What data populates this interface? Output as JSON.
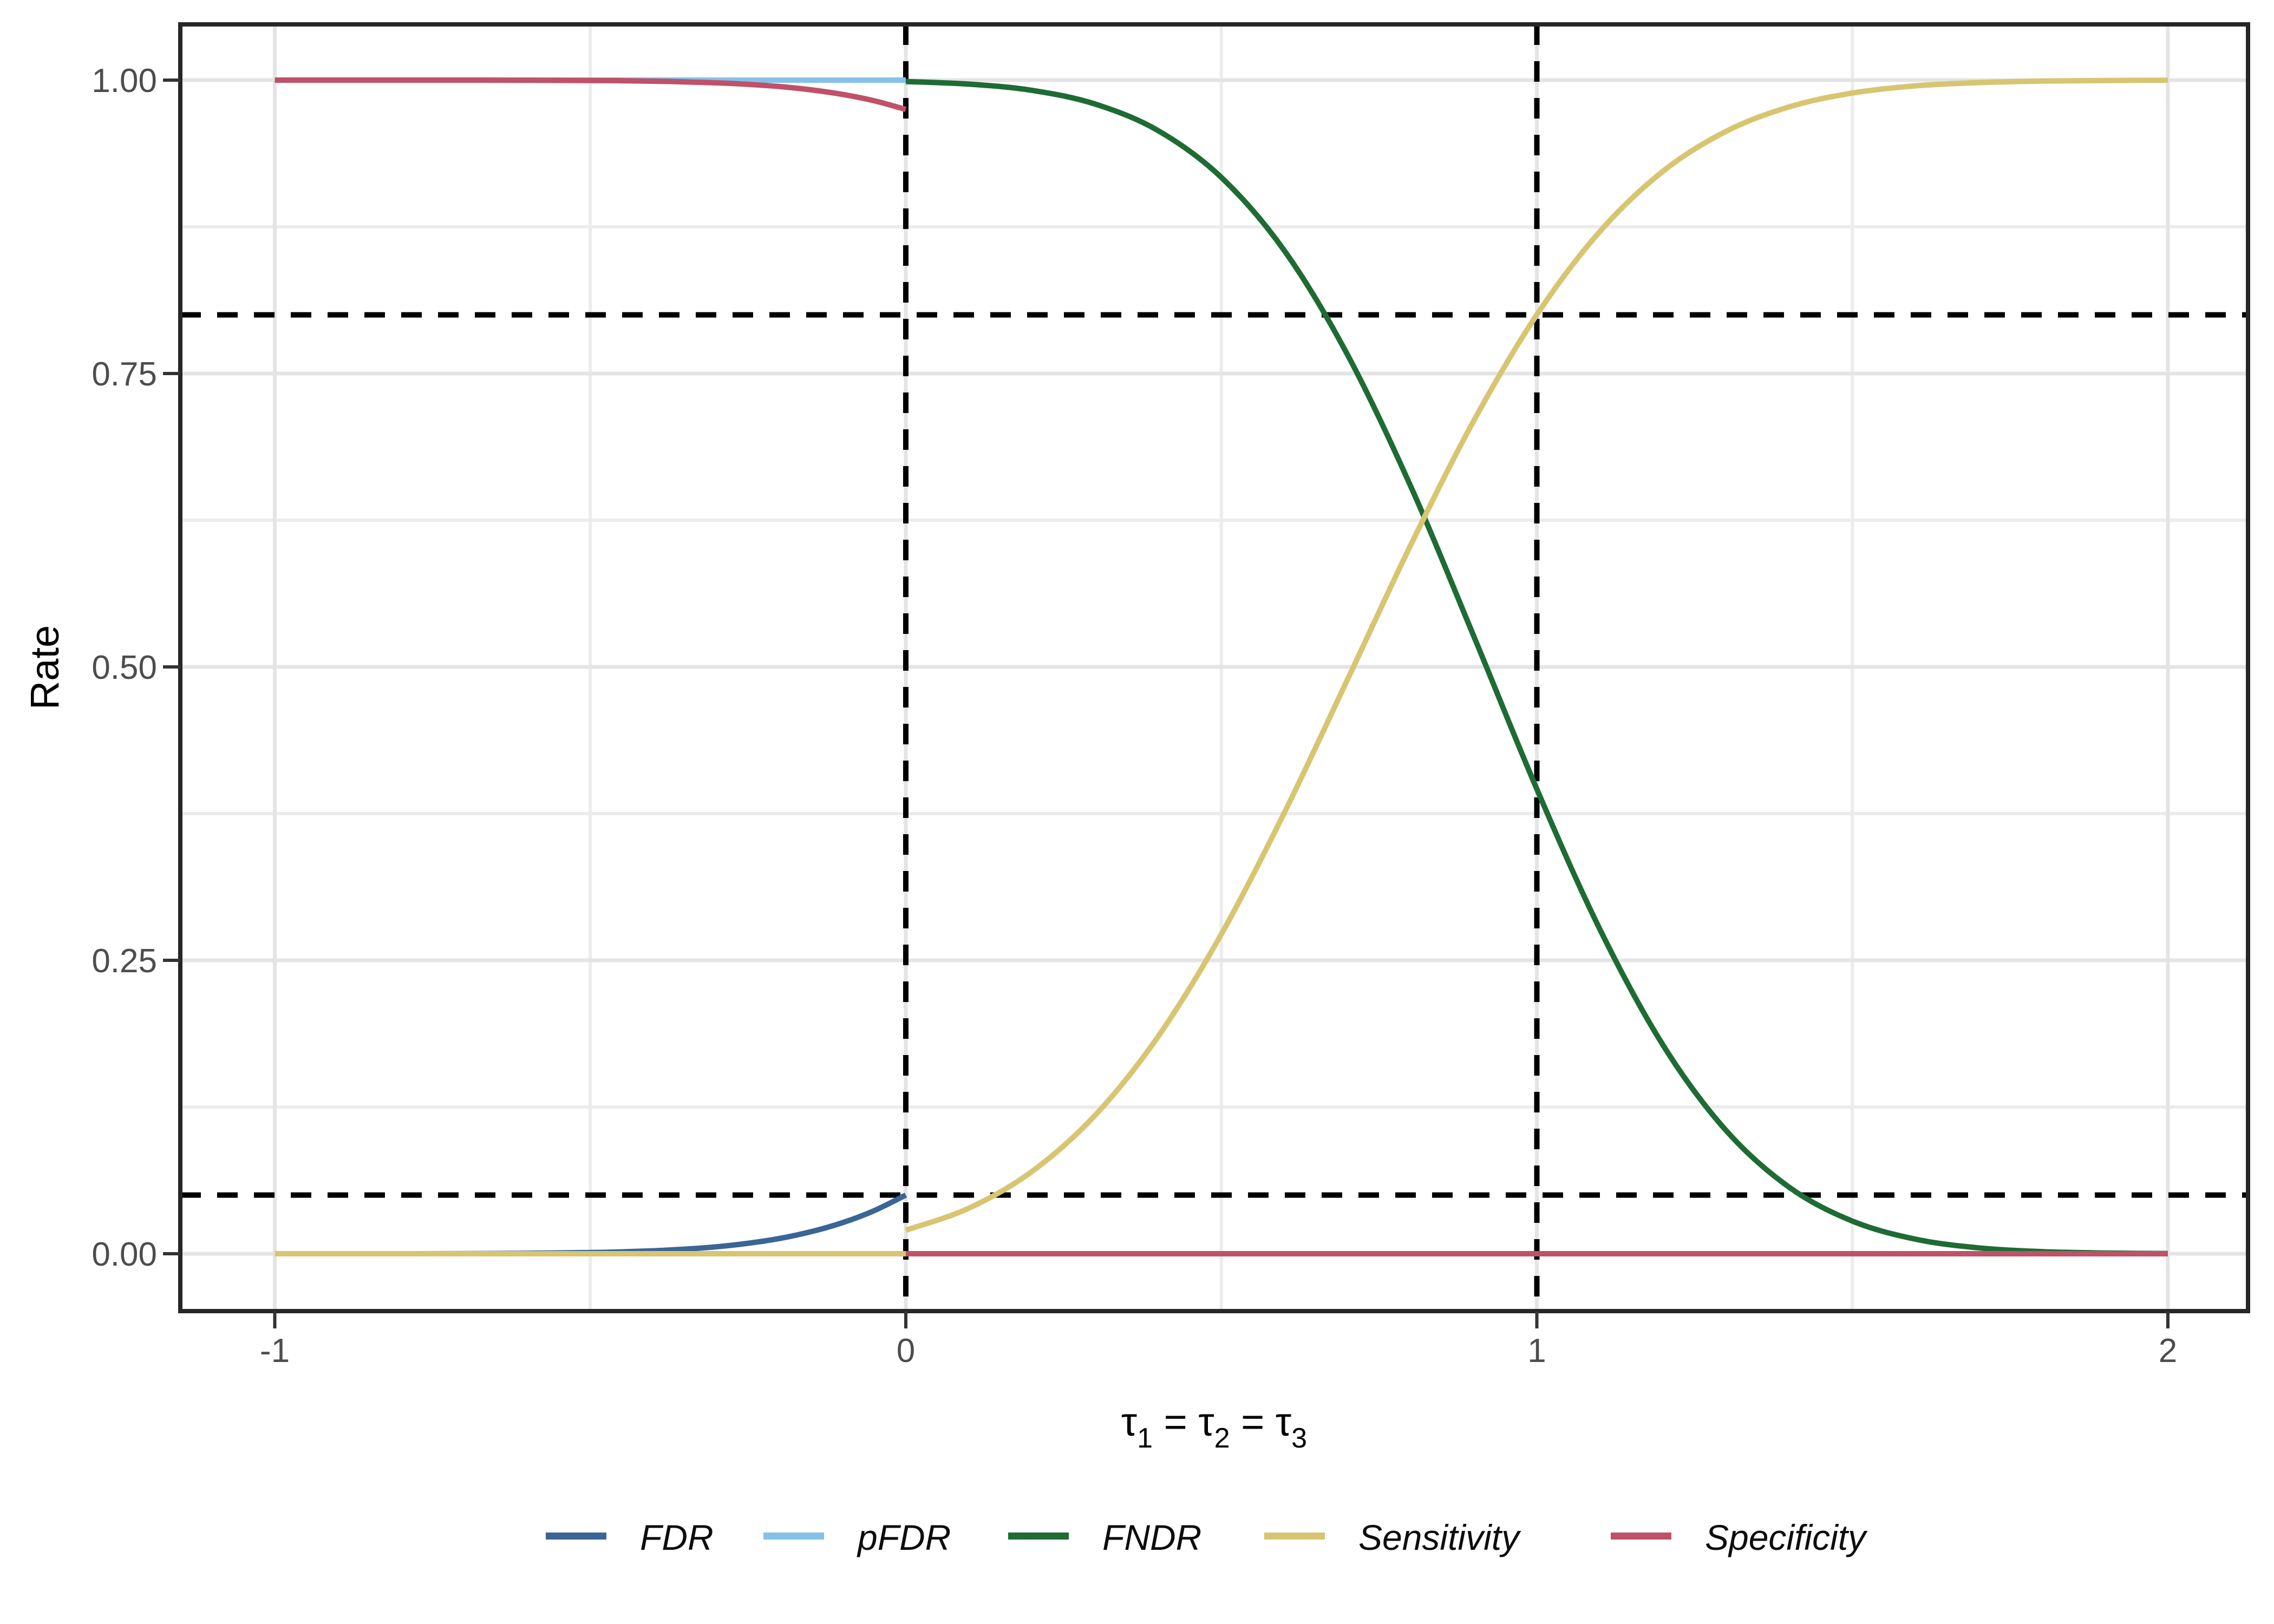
{
  "chart_data": {
    "type": "line",
    "title": "",
    "xlabel_plain": "tau1 = tau2 = tau3",
    "xlabel_rich": [
      {
        "base": "τ",
        "sub": "1"
      },
      {
        "base": " = "
      },
      {
        "base": "τ",
        "sub": "2"
      },
      {
        "base": " = "
      },
      {
        "base": "τ",
        "sub": "3"
      }
    ],
    "ylabel": "Rate",
    "xlim": [
      -1.145,
      2.128
    ],
    "ylim": [
      -0.051,
      1.047
    ],
    "grid": true,
    "legend_position": "bottom",
    "x_ticks": [
      {
        "value": -1,
        "label": "-1"
      },
      {
        "value": 0,
        "label": "0"
      },
      {
        "value": 1,
        "label": "1"
      },
      {
        "value": 2,
        "label": "2"
      }
    ],
    "y_ticks": [
      {
        "value": 0.0,
        "label": "0.00"
      },
      {
        "value": 0.25,
        "label": "0.25"
      },
      {
        "value": 0.5,
        "label": "0.50"
      },
      {
        "value": 0.75,
        "label": "0.75"
      },
      {
        "value": 1.0,
        "label": "1.00"
      }
    ],
    "x_minor": [
      -0.5,
      0.5,
      1.5
    ],
    "y_minor": [
      0.125,
      0.375,
      0.625,
      0.875
    ],
    "reference_lines": {
      "style": "dashed",
      "color": "#000000",
      "horizontal": [
        0.8,
        0.05
      ],
      "vertical": [
        0,
        1
      ]
    },
    "series": [
      {
        "name": "FDR",
        "color": "#3a6596",
        "segments": [
          [
            [
              -1,
              0.0
            ],
            [
              -0.9,
              0.0
            ],
            [
              -0.8,
              0.0
            ],
            [
              -0.7,
              0.0001
            ],
            [
              -0.6,
              0.0004
            ],
            [
              -0.5,
              0.001
            ],
            [
              -0.45,
              0.0016
            ],
            [
              -0.4,
              0.0025
            ],
            [
              -0.35,
              0.0039
            ],
            [
              -0.3,
              0.0059
            ],
            [
              -0.25,
              0.0089
            ],
            [
              -0.2,
              0.013
            ],
            [
              -0.15,
              0.0188
            ],
            [
              -0.1,
              0.0265
            ],
            [
              -0.05,
              0.0367
            ],
            [
              0,
              0.05
            ]
          ]
        ]
      },
      {
        "name": "pFDR",
        "color": "#85c1e9",
        "segments": [
          [
            [
              -1,
              1.0
            ],
            [
              0,
              1.0
            ]
          ]
        ]
      },
      {
        "name": "FNDR",
        "color": "#1e6b34",
        "segments": [
          [
            [
              0,
              0.9988
            ],
            [
              0.1,
              0.9966
            ],
            [
              0.2,
              0.9913
            ],
            [
              0.3,
              0.9796
            ],
            [
              0.4,
              0.9569
            ],
            [
              0.5,
              0.9171
            ],
            [
              0.6,
              0.8546
            ],
            [
              0.7,
              0.766
            ],
            [
              0.8,
              0.654
            ],
            [
              0.9,
              0.5263
            ],
            [
              1.0,
              0.3959
            ],
            [
              1.1,
              0.2763
            ],
            [
              1.2,
              0.1777
            ],
            [
              1.3,
              0.1049
            ],
            [
              1.4,
              0.0566
            ],
            [
              1.5,
              0.0278
            ],
            [
              1.6,
              0.0124
            ],
            [
              1.7,
              0.005
            ],
            [
              1.8,
              0.0018
            ],
            [
              1.9,
              0.0006
            ],
            [
              2.0,
              0.0002
            ]
          ]
        ]
      },
      {
        "name": "Sensitivity",
        "color": "#d8c571",
        "segments": [
          [
            [
              -1,
              0.0
            ],
            [
              0,
              0.0
            ]
          ],
          [
            [
              0,
              0.02
            ],
            [
              0.1,
              0.0388
            ],
            [
              0.2,
              0.0701
            ],
            [
              0.3,
              0.118
            ],
            [
              0.4,
              0.1852
            ],
            [
              0.5,
              0.2723
            ],
            [
              0.6,
              0.3759
            ],
            [
              0.7,
              0.4893
            ],
            [
              0.8,
              0.6037
            ],
            [
              0.9,
              0.7097
            ],
            [
              1.0,
              0.8001
            ],
            [
              1.1,
              0.8711
            ],
            [
              1.2,
              0.9224
            ],
            [
              1.3,
              0.9564
            ],
            [
              1.4,
              0.9772
            ],
            [
              1.5,
              0.989
            ],
            [
              1.6,
              0.9951
            ],
            [
              1.7,
              0.9979
            ],
            [
              1.8,
              0.9992
            ],
            [
              1.9,
              0.9997
            ],
            [
              2.0,
              0.9999
            ]
          ]
        ]
      },
      {
        "name": "Specificity",
        "color": "#bf5168",
        "segments": [
          [
            [
              -1,
              1.0
            ],
            [
              -0.9,
              1.0
            ],
            [
              -0.8,
              1.0
            ],
            [
              -0.7,
              1.0
            ],
            [
              -0.6,
              0.9999
            ],
            [
              -0.5,
              0.9997
            ],
            [
              -0.45,
              0.9995
            ],
            [
              -0.4,
              0.9991
            ],
            [
              -0.35,
              0.9985
            ],
            [
              -0.3,
              0.9977
            ],
            [
              -0.25,
              0.9964
            ],
            [
              -0.2,
              0.9945
            ],
            [
              -0.15,
              0.9917
            ],
            [
              -0.1,
              0.9878
            ],
            [
              -0.05,
              0.9824
            ],
            [
              0,
              0.975
            ]
          ],
          [
            [
              0,
              0.0
            ],
            [
              2,
              0.0
            ]
          ]
        ]
      }
    ],
    "legend": {
      "items": [
        {
          "label": "FDR",
          "color": "#3a6596"
        },
        {
          "label": "pFDR",
          "color": "#85c1e9"
        },
        {
          "label": "FNDR",
          "color": "#1e6b34"
        },
        {
          "label": "Sensitivity",
          "color": "#d8c571"
        },
        {
          "label": "Specificity",
          "color": "#bf5168"
        }
      ]
    }
  },
  "colors": {
    "background": "#ffffff",
    "grid_major": "#e4e4e4",
    "grid_minor": "#ececec",
    "panel_border": "#262626",
    "tick": "#333333",
    "tick_label": "#4d4d4d",
    "axis_title": "#000000",
    "reference_line": "#000000"
  }
}
